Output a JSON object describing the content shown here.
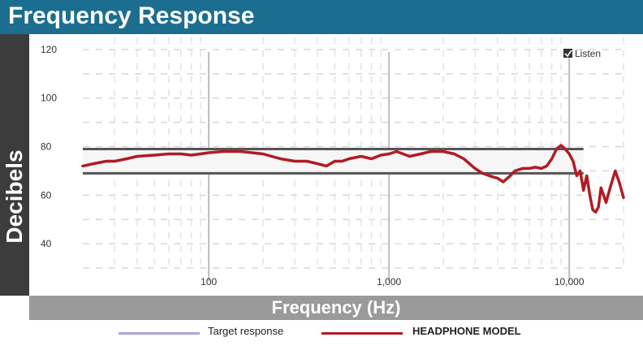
{
  "chart_data": {
    "type": "line",
    "title": "Frequency Response",
    "xlabel": "Frequency (Hz)",
    "ylabel": "Decibels",
    "xscale": "log",
    "xlim": [
      20,
      20000
    ],
    "ylim": [
      30,
      125
    ],
    "xticks": [
      {
        "value": 100,
        "label": "100"
      },
      {
        "value": 1000,
        "label": "1,000"
      },
      {
        "value": 10000,
        "label": "10,000"
      }
    ],
    "yticks": [
      {
        "value": 120,
        "label": "120"
      },
      {
        "value": 100,
        "label": "100"
      },
      {
        "value": 80,
        "label": "80"
      },
      {
        "value": 60,
        "label": "60"
      },
      {
        "value": 40,
        "label": "40"
      }
    ],
    "grid": true,
    "legend_position": "bottom",
    "target_band": {
      "low": 69,
      "high": 79,
      "x_start": 20,
      "x_end": 12000
    },
    "series": [
      {
        "name": "HEADPHONE MODEL",
        "color": "#b01c24",
        "x": [
          20,
          23,
          27,
          30,
          35,
          40,
          50,
          60,
          70,
          80,
          90,
          100,
          120,
          150,
          200,
          250,
          300,
          350,
          400,
          450,
          500,
          550,
          600,
          700,
          800,
          900,
          1000,
          1100,
          1300,
          1500,
          1700,
          2000,
          2300,
          2600,
          3000,
          3300,
          3600,
          4000,
          4300,
          4700,
          5000,
          5500,
          6000,
          6500,
          7000,
          7500,
          8000,
          8500,
          9000,
          9500,
          10000,
          10500,
          11000,
          11500,
          12000,
          12500,
          13000,
          13500,
          14000,
          14500,
          15000,
          15500,
          16000,
          17000,
          18000,
          19000,
          20000
        ],
        "y": [
          72,
          73,
          74,
          74,
          75,
          76,
          76.5,
          77,
          77,
          76.5,
          77,
          77.5,
          78,
          78,
          77,
          75,
          74,
          74,
          73,
          72,
          74,
          74,
          75,
          76,
          75,
          76.5,
          77,
          78,
          76,
          77,
          78,
          78,
          77,
          75,
          71,
          69,
          68,
          67,
          65.5,
          68,
          70,
          71,
          71,
          71.5,
          71,
          72,
          75,
          79,
          80.5,
          79,
          77,
          74,
          68,
          70,
          62,
          68,
          60,
          54,
          53,
          55,
          63,
          60,
          57,
          64,
          70,
          65,
          59
        ]
      },
      {
        "name": "Target response",
        "color": "#a9a6e0",
        "x": [],
        "y": []
      }
    ],
    "annotation": "Listen"
  }
}
